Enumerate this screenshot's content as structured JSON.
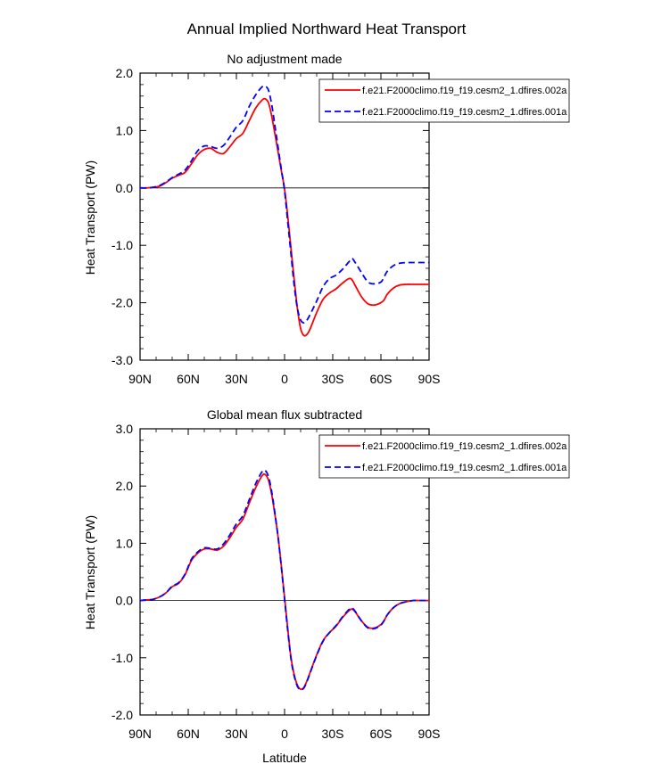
{
  "figure": {
    "title": "Annual Implied Northward Heat Transport"
  },
  "chart_data": [
    {
      "type": "line",
      "title": "No adjustment made",
      "xlabel": "",
      "ylabel": "Heat Transport (PW)",
      "xlim": [
        90,
        -90
      ],
      "ylim": [
        -3,
        2
      ],
      "x_ticks": [
        90,
        60,
        30,
        0,
        -30,
        -60,
        -90
      ],
      "x_tick_labels": [
        "90N",
        "60N",
        "30N",
        "0",
        "30S",
        "60S",
        "90S"
      ],
      "y_ticks": [
        -3,
        -2,
        -1,
        0,
        1,
        2
      ],
      "y_tick_labels": [
        "-3.0",
        "-2.0",
        "-1.0",
        "0.0",
        "1.0",
        "2.0"
      ],
      "zero_line": true,
      "legend_position": "top-right",
      "series": [
        {
          "name": "f.e21.F2000climo.f19_f19.cesm2_1.dfires.002a",
          "color": "#ff0000",
          "dash": "solid",
          "x": [
            90,
            86,
            82,
            78,
            74,
            70,
            66,
            62,
            58,
            54,
            50,
            46,
            42,
            38,
            34,
            30,
            26,
            22,
            18,
            14,
            12,
            10,
            8,
            6,
            4,
            2,
            0,
            -2,
            -4,
            -6,
            -8,
            -10,
            -12,
            -14,
            -16,
            -20,
            -24,
            -28,
            -32,
            -36,
            -40,
            -42,
            -44,
            -48,
            -52,
            -56,
            -60,
            -62,
            -64,
            -68,
            -72,
            -76,
            -80,
            -84,
            -88,
            -90
          ],
          "y": [
            0,
            0,
            0.01,
            0.03,
            0.09,
            0.17,
            0.22,
            0.27,
            0.42,
            0.58,
            0.67,
            0.69,
            0.62,
            0.6,
            0.72,
            0.86,
            0.95,
            1.17,
            1.39,
            1.53,
            1.55,
            1.48,
            1.25,
            0.94,
            0.62,
            0.3,
            -0.02,
            -0.5,
            -1.05,
            -1.6,
            -2.1,
            -2.45,
            -2.57,
            -2.55,
            -2.45,
            -2.17,
            -1.94,
            -1.83,
            -1.76,
            -1.66,
            -1.58,
            -1.6,
            -1.7,
            -1.9,
            -2.02,
            -2.04,
            -2.0,
            -1.95,
            -1.85,
            -1.74,
            -1.69,
            -1.68,
            -1.68,
            -1.68,
            -1.68,
            -1.68
          ]
        },
        {
          "name": "f.e21.F2000climo.f19_f19.cesm2_1.dfires.001a",
          "color": "#0000ff",
          "dash": "dashed",
          "x": [
            90,
            86,
            82,
            78,
            74,
            70,
            66,
            62,
            58,
            54,
            50,
            46,
            42,
            38,
            34,
            30,
            26,
            22,
            18,
            14,
            12,
            10,
            8,
            6,
            4,
            2,
            0,
            -2,
            -4,
            -6,
            -8,
            -10,
            -12,
            -14,
            -16,
            -20,
            -24,
            -28,
            -32,
            -36,
            -40,
            -42,
            -44,
            -48,
            -52,
            -56,
            -60,
            -62,
            -64,
            -68,
            -72,
            -76,
            -80,
            -84,
            -88,
            -90
          ],
          "y": [
            0,
            0,
            0.01,
            0.04,
            0.1,
            0.18,
            0.24,
            0.31,
            0.47,
            0.65,
            0.73,
            0.72,
            0.69,
            0.74,
            0.89,
            1.06,
            1.17,
            1.42,
            1.62,
            1.76,
            1.77,
            1.7,
            1.45,
            1.08,
            0.7,
            0.32,
            -0.05,
            -0.6,
            -1.15,
            -1.7,
            -2.1,
            -2.3,
            -2.35,
            -2.3,
            -2.2,
            -1.97,
            -1.72,
            -1.58,
            -1.52,
            -1.42,
            -1.29,
            -1.23,
            -1.3,
            -1.48,
            -1.64,
            -1.67,
            -1.64,
            -1.55,
            -1.45,
            -1.35,
            -1.31,
            -1.3,
            -1.3,
            -1.3,
            -1.3,
            -1.3
          ]
        }
      ]
    },
    {
      "type": "line",
      "title": "Global mean flux subtracted",
      "xlabel": "Latitude",
      "ylabel": "Heat Transport (PW)",
      "xlim": [
        90,
        -90
      ],
      "ylim": [
        -2,
        3
      ],
      "x_ticks": [
        90,
        60,
        30,
        0,
        -30,
        -60,
        -90
      ],
      "x_tick_labels": [
        "90N",
        "60N",
        "30N",
        "0",
        "30S",
        "60S",
        "90S"
      ],
      "y_ticks": [
        -2,
        -1,
        0,
        1,
        2,
        3
      ],
      "y_tick_labels": [
        "-2.0",
        "-1.0",
        "0.0",
        "1.0",
        "2.0",
        "3.0"
      ],
      "zero_line": true,
      "legend_position": "top-right",
      "series": [
        {
          "name": "f.e21.F2000climo.f19_f19.cesm2_1.dfires.002a",
          "color": "#ff0000",
          "dash": "solid",
          "x": [
            90,
            86,
            82,
            78,
            74,
            70,
            66,
            62,
            58,
            54,
            50,
            46,
            42,
            38,
            34,
            30,
            26,
            22,
            18,
            14,
            12,
            10,
            8,
            6,
            4,
            2,
            0,
            -2,
            -4,
            -6,
            -8,
            -10,
            -12,
            -14,
            -16,
            -20,
            -24,
            -28,
            -32,
            -36,
            -40,
            -42,
            -44,
            -48,
            -52,
            -56,
            -60,
            -62,
            -64,
            -68,
            -72,
            -76,
            -80,
            -84,
            -88,
            -90
          ],
          "y": [
            0,
            0.01,
            0.02,
            0.06,
            0.13,
            0.24,
            0.3,
            0.45,
            0.7,
            0.83,
            0.9,
            0.9,
            0.88,
            0.95,
            1.1,
            1.28,
            1.42,
            1.7,
            1.97,
            2.18,
            2.2,
            2.1,
            1.85,
            1.5,
            1.1,
            0.6,
            0.05,
            -0.5,
            -1.0,
            -1.3,
            -1.48,
            -1.55,
            -1.52,
            -1.4,
            -1.25,
            -0.95,
            -0.7,
            -0.56,
            -0.45,
            -0.3,
            -0.18,
            -0.15,
            -0.2,
            -0.36,
            -0.47,
            -0.48,
            -0.42,
            -0.35,
            -0.25,
            -0.12,
            -0.05,
            -0.02,
            0,
            0,
            0,
            0
          ]
        },
        {
          "name": "f.e21.F2000climo.f19_f19.cesm2_1.dfires.001a",
          "color": "#0000ff",
          "dash": "dashed",
          "x": [
            90,
            86,
            82,
            78,
            74,
            70,
            66,
            62,
            58,
            54,
            50,
            46,
            42,
            38,
            34,
            30,
            26,
            22,
            18,
            14,
            12,
            10,
            8,
            6,
            4,
            2,
            0,
            -2,
            -4,
            -6,
            -8,
            -10,
            -12,
            -14,
            -16,
            -20,
            -24,
            -28,
            -32,
            -36,
            -40,
            -42,
            -44,
            -48,
            -52,
            -56,
            -60,
            -62,
            -64,
            -68,
            -72,
            -76,
            -80,
            -84,
            -88,
            -90
          ],
          "y": [
            0,
            0.01,
            0.02,
            0.06,
            0.13,
            0.25,
            0.31,
            0.46,
            0.72,
            0.85,
            0.92,
            0.91,
            0.9,
            0.99,
            1.15,
            1.34,
            1.48,
            1.76,
            2.04,
            2.25,
            2.27,
            2.16,
            1.9,
            1.52,
            1.1,
            0.58,
            0.02,
            -0.53,
            -1.02,
            -1.32,
            -1.5,
            -1.56,
            -1.53,
            -1.41,
            -1.26,
            -0.96,
            -0.71,
            -0.56,
            -0.44,
            -0.29,
            -0.16,
            -0.13,
            -0.19,
            -0.36,
            -0.48,
            -0.49,
            -0.43,
            -0.35,
            -0.25,
            -0.12,
            -0.05,
            -0.02,
            0,
            0,
            0,
            0
          ]
        }
      ]
    }
  ]
}
